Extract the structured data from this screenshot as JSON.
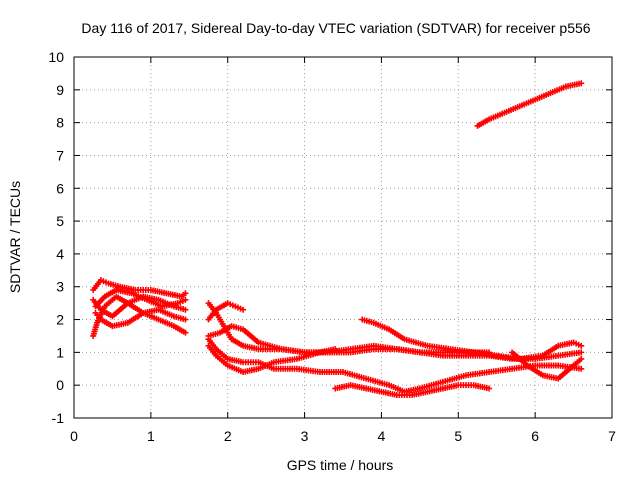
{
  "chart_data": {
    "type": "scatter",
    "title": "Day 116 of 2017, Sidereal Day-to-day VTEC variation (SDTVAR) for receiver p556",
    "xlabel": "GPS time / hours",
    "ylabel": "SDTVAR / TECUs",
    "xlim": [
      0,
      7
    ],
    "ylim": [
      -1,
      10
    ],
    "xticks": [
      0,
      1,
      2,
      3,
      4,
      5,
      6,
      7
    ],
    "yticks": [
      -1,
      0,
      1,
      2,
      3,
      4,
      5,
      6,
      7,
      8,
      9,
      10
    ],
    "grid": true,
    "legend": "none",
    "marker": "plus",
    "color": "#ff0000",
    "series": [
      {
        "x": [
          0.25,
          0.35,
          0.45,
          0.6,
          0.8,
          1.0,
          1.2,
          1.4,
          1.45
        ],
        "y": [
          2.9,
          3.2,
          3.1,
          3.0,
          2.9,
          2.9,
          2.8,
          2.7,
          2.8
        ]
      },
      {
        "x": [
          0.25,
          0.35,
          0.5,
          0.7,
          0.9,
          1.1,
          1.3,
          1.45
        ],
        "y": [
          2.6,
          2.3,
          2.1,
          2.5,
          2.7,
          2.6,
          2.4,
          2.3
        ]
      },
      {
        "x": [
          0.25,
          0.3,
          0.4,
          0.55,
          0.7,
          0.9,
          1.1,
          1.3,
          1.45
        ],
        "y": [
          1.5,
          1.9,
          2.4,
          2.7,
          2.5,
          2.2,
          2.0,
          1.8,
          1.6
        ]
      },
      {
        "x": [
          0.28,
          0.35,
          0.5,
          0.7,
          0.9,
          1.1,
          1.3,
          1.45
        ],
        "y": [
          2.2,
          2.0,
          1.8,
          1.9,
          2.2,
          2.3,
          2.1,
          2.0
        ]
      },
      {
        "x": [
          0.28,
          0.4,
          0.55,
          0.75,
          0.95,
          1.15,
          1.35,
          1.45
        ],
        "y": [
          2.4,
          2.7,
          2.9,
          2.8,
          2.6,
          2.4,
          2.5,
          2.6
        ]
      },
      {
        "x": [
          1.75,
          1.85,
          1.95,
          2.05,
          2.2,
          2.4,
          2.7,
          3.0,
          3.3,
          3.6,
          3.9,
          4.2,
          4.5,
          4.8,
          5.1,
          5.4
        ],
        "y": [
          2.5,
          2.2,
          1.8,
          1.4,
          1.2,
          1.1,
          1.1,
          1.0,
          1.0,
          1.0,
          1.1,
          1.1,
          1.0,
          1.0,
          1.0,
          1.0
        ]
      },
      {
        "x": [
          1.75,
          1.85,
          2.0,
          2.1,
          2.2
        ],
        "y": [
          2.0,
          2.3,
          2.5,
          2.4,
          2.3
        ]
      },
      {
        "x": [
          1.75,
          1.9,
          2.05,
          2.2,
          2.4,
          2.7,
          3.0,
          3.3,
          3.6,
          3.9,
          4.2,
          4.5,
          4.8,
          5.1,
          5.4,
          5.7,
          6.0,
          6.3,
          6.6
        ],
        "y": [
          1.5,
          1.6,
          1.8,
          1.7,
          1.3,
          1.1,
          1.0,
          1.0,
          1.1,
          1.2,
          1.1,
          1.0,
          0.9,
          0.9,
          0.9,
          0.8,
          0.8,
          0.9,
          1.0
        ]
      },
      {
        "x": [
          1.75,
          1.85,
          2.0,
          2.2,
          2.4,
          2.6,
          2.9,
          3.2,
          3.4
        ],
        "y": [
          1.2,
          0.9,
          0.6,
          0.4,
          0.5,
          0.7,
          0.8,
          1.0,
          1.1
        ]
      },
      {
        "x": [
          1.75,
          1.85,
          2.0,
          2.2,
          2.4,
          2.6,
          2.9,
          3.2,
          3.5,
          3.8,
          4.1,
          4.3,
          4.5,
          4.8,
          5.1,
          5.4,
          5.7,
          6.0,
          6.3,
          6.6
        ],
        "y": [
          1.4,
          1.1,
          0.8,
          0.7,
          0.7,
          0.5,
          0.5,
          0.4,
          0.4,
          0.2,
          0.0,
          -0.2,
          -0.1,
          0.1,
          0.3,
          0.4,
          0.5,
          0.6,
          0.6,
          0.5
        ]
      },
      {
        "x": [
          3.4,
          3.6,
          3.8,
          4.0,
          4.2,
          4.4,
          4.6,
          4.8,
          5.0,
          5.2,
          5.4
        ],
        "y": [
          -0.1,
          0.0,
          -0.1,
          -0.2,
          -0.3,
          -0.3,
          -0.2,
          -0.1,
          0.0,
          0.0,
          -0.1
        ]
      },
      {
        "x": [
          3.75,
          3.9,
          4.1,
          4.3,
          4.6,
          4.9,
          5.2,
          5.5,
          5.8,
          6.1,
          6.3,
          6.5,
          6.6
        ],
        "y": [
          2.0,
          1.9,
          1.7,
          1.4,
          1.2,
          1.1,
          1.0,
          0.9,
          0.8,
          0.9,
          1.2,
          1.3,
          1.2
        ]
      },
      {
        "x": [
          5.7,
          5.9,
          6.1,
          6.3,
          6.5,
          6.6
        ],
        "y": [
          1.0,
          0.6,
          0.3,
          0.2,
          0.6,
          0.8
        ]
      },
      {
        "x": [
          5.25,
          5.4,
          5.6,
          5.8,
          6.0,
          6.2,
          6.4,
          6.6
        ],
        "y": [
          7.9,
          8.1,
          8.3,
          8.5,
          8.7,
          8.9,
          9.1,
          9.2
        ]
      }
    ]
  }
}
